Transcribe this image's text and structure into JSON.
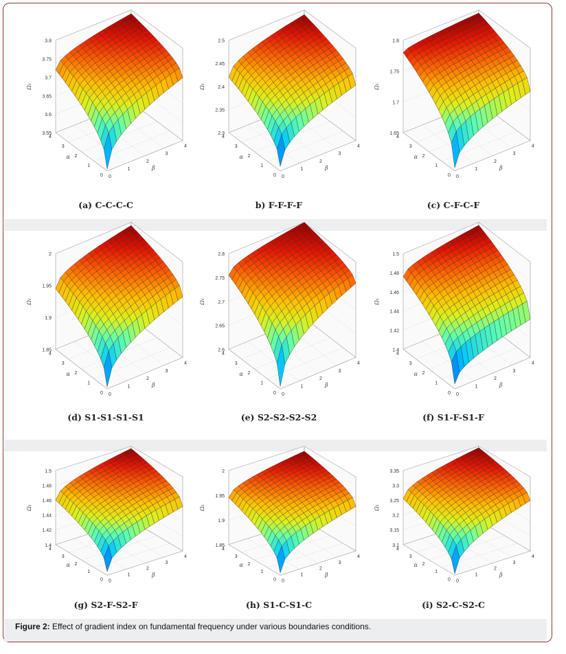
{
  "figure": {
    "caption_label": "Figure 2:",
    "caption_text": " Effect of gradient index on fundamental frequency under various boundaries conditions."
  },
  "chart_data": [
    {
      "type": "surface",
      "panel": "a",
      "title": "(a) C-C-C-C",
      "xlabel": "β",
      "ylabel": "α",
      "zlabel": "Ω₁",
      "x_ticks": [
        "0",
        "1",
        "2",
        "3",
        "4"
      ],
      "y_ticks": [
        "0",
        "1",
        "2",
        "3",
        "4"
      ],
      "z_ticks": [
        "3.55",
        "3.6",
        "3.65",
        "3.7",
        "3.75",
        "3.8"
      ],
      "z_range": [
        3.55,
        3.8
      ],
      "z_min": 3.555,
      "z_max": 3.79,
      "z_at_alpha_max_beta_0": 3.72,
      "z_at_alpha_0_beta_max": 3.72
    },
    {
      "type": "surface",
      "panel": "b",
      "title": "b) F-F-F-F",
      "xlabel": "β",
      "ylabel": "α",
      "zlabel": "Ω₁",
      "x_ticks": [
        "0",
        "1",
        "2",
        "3",
        "4"
      ],
      "y_ticks": [
        "0",
        "1",
        "2",
        "3",
        "4"
      ],
      "z_ticks": [
        "2.3",
        "2.35",
        "2.4",
        "2.45",
        "2.5"
      ],
      "z_range": [
        2.3,
        2.5
      ],
      "z_min": 2.31,
      "z_max": 2.49,
      "z_at_alpha_max_beta_0": 2.42,
      "z_at_alpha_0_beta_max": 2.42
    },
    {
      "type": "surface",
      "panel": "c",
      "title": "(c) C-F-C-F",
      "xlabel": "β",
      "ylabel": "α",
      "zlabel": "Ω₁",
      "x_ticks": [
        "0",
        "1",
        "2",
        "3",
        "4"
      ],
      "y_ticks": [
        "0",
        "1",
        "2",
        "3",
        "4"
      ],
      "z_ticks": [
        "1.65",
        "1.7",
        "1.75",
        "1.8"
      ],
      "z_range": [
        1.65,
        1.8
      ],
      "z_min": 1.655,
      "z_max": 1.795,
      "z_at_alpha_max_beta_0": 1.78,
      "z_at_alpha_0_beta_max": 1.73
    },
    {
      "type": "surface",
      "panel": "d",
      "title": "(d) S1-S1-S1-S1",
      "xlabel": "β",
      "ylabel": "α",
      "zlabel": "Ω₁",
      "x_ticks": [
        "0",
        "1",
        "2",
        "3",
        "4"
      ],
      "y_ticks": [
        "0",
        "1",
        "2",
        "3",
        "4"
      ],
      "z_ticks": [
        "1.85",
        "1.9",
        "1.95",
        "2"
      ],
      "z_range": [
        1.85,
        2.0
      ],
      "z_min": 1.853,
      "z_max": 1.995,
      "z_at_alpha_max_beta_0": 1.945,
      "z_at_alpha_0_beta_max": 1.945
    },
    {
      "type": "surface",
      "panel": "e",
      "title": "(e) S2-S2-S2-S2",
      "xlabel": "β",
      "ylabel": "α",
      "zlabel": "Ω₁",
      "x_ticks": [
        "0",
        "1",
        "2",
        "3",
        "4"
      ],
      "y_ticks": [
        "0",
        "1",
        "2",
        "3",
        "4"
      ],
      "z_ticks": [
        "2.6",
        "2.65",
        "2.7",
        "2.75",
        "2.8"
      ],
      "z_range": [
        2.6,
        2.8
      ],
      "z_min": 2.605,
      "z_max": 2.8,
      "z_at_alpha_max_beta_0": 2.755,
      "z_at_alpha_0_beta_max": 2.755
    },
    {
      "type": "surface",
      "panel": "f",
      "title": "(f) S1-F-S1-F",
      "xlabel": "β",
      "ylabel": "α",
      "zlabel": "Ω₁",
      "x_ticks": [
        "0",
        "1",
        "2",
        "3",
        "4"
      ],
      "y_ticks": [
        "0",
        "1",
        "2",
        "3",
        "4"
      ],
      "z_ticks": [
        "1.4",
        "1.42",
        "1.44",
        "1.46",
        "1.48",
        "1.5"
      ],
      "z_range": [
        1.4,
        1.5
      ],
      "z_min": 1.405,
      "z_max": 1.497,
      "z_at_alpha_max_beta_0": 1.476,
      "z_at_alpha_0_beta_max": 1.44
    },
    {
      "type": "surface",
      "panel": "g",
      "title": "(g) S2-F-S2-F",
      "xlabel": "β",
      "ylabel": "α",
      "zlabel": "Ω₁",
      "x_ticks": [
        "0",
        "1",
        "2",
        "3",
        "4"
      ],
      "y_ticks": [
        "0",
        "1",
        "2",
        "3",
        "4"
      ],
      "z_ticks": [
        "1.4",
        "1.42",
        "1.44",
        "1.46",
        "1.48",
        "1.5"
      ],
      "z_range": [
        1.4,
        1.5
      ],
      "z_min": 1.405,
      "z_max": 1.497,
      "z_at_alpha_max_beta_0": 1.46,
      "z_at_alpha_0_beta_max": 1.46
    },
    {
      "type": "surface",
      "panel": "h",
      "title": "(h) S1-C-S1-C",
      "xlabel": "β",
      "ylabel": "α",
      "zlabel": "Ω₁",
      "x_ticks": [
        "0",
        "1",
        "2",
        "3",
        "4"
      ],
      "y_ticks": [
        "0",
        "1",
        "2",
        "3",
        "4"
      ],
      "z_ticks": [
        "1.85",
        "1.9",
        "1.95",
        "2"
      ],
      "z_range": [
        1.85,
        2.0
      ],
      "z_min": 1.855,
      "z_max": 1.99,
      "z_at_alpha_max_beta_0": 1.945,
      "z_at_alpha_0_beta_max": 1.94
    },
    {
      "type": "surface",
      "panel": "i",
      "title": "(i) S2-C-S2-C",
      "xlabel": "β",
      "ylabel": "α",
      "zlabel": "Ω₁",
      "x_ticks": [
        "0",
        "1",
        "2",
        "3",
        "4"
      ],
      "y_ticks": [
        "0",
        "1",
        "2",
        "3",
        "4"
      ],
      "z_ticks": [
        "3.1",
        "3.15",
        "3.2",
        "3.25",
        "3.3",
        "3.35"
      ],
      "z_range": [
        3.1,
        3.35
      ],
      "z_min": 3.105,
      "z_max": 3.345,
      "z_at_alpha_max_beta_0": 3.255,
      "z_at_alpha_0_beta_max": 3.27
    }
  ]
}
